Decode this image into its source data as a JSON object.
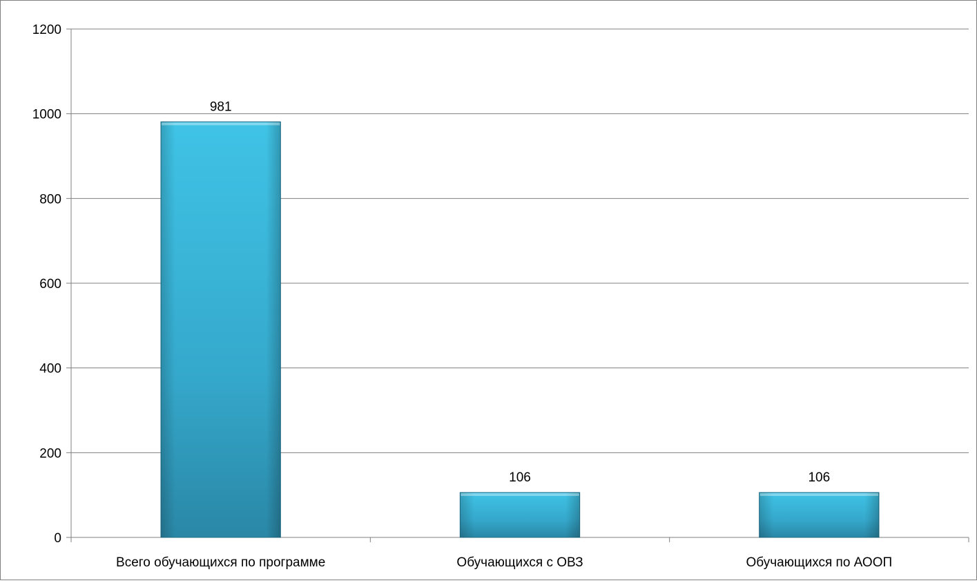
{
  "chart_data": {
    "type": "bar",
    "title": "",
    "xlabel": "",
    "ylabel": "",
    "categories": [
      "Всего обучающихся по программе",
      "Обучающихся с ОВЗ",
      "Обучающихся по АООП"
    ],
    "values": [
      981,
      106,
      106
    ],
    "data_labels": [
      "981",
      "106",
      "106"
    ],
    "ylim": [
      0,
      1200
    ],
    "yticks": [
      0,
      200,
      400,
      600,
      800,
      1000,
      1200
    ],
    "grid": true,
    "legend": "none",
    "colors": {
      "bar_light": "#3fc3e6",
      "bar_mid": "#35a9cc",
      "bar_dark": "#2a87a6",
      "bar_edge": "#1f6f8a",
      "gridline": "#7f7f7f"
    }
  }
}
